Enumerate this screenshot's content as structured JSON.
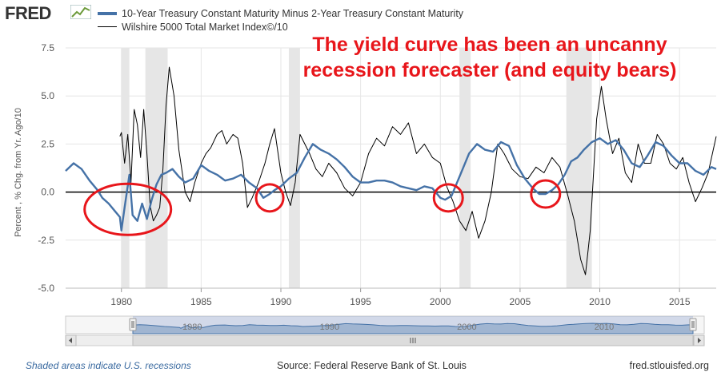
{
  "header": {
    "logo_text": "FRED",
    "logo_icon": "line-chart-icon"
  },
  "annotation": {
    "line1": "The yield curve has been an uncanny",
    "line2": "recession forecaster (and equity bears)"
  },
  "footer": {
    "note": "Shaded areas indicate U.S. recessions",
    "source": "Source: Federal Reserve Bank of St. Louis",
    "site": "fred.stlouisfed.org"
  },
  "navigator": {
    "tick_labels": [
      "1980",
      "1990",
      "2000",
      "2010"
    ],
    "scroll_icon": "scroll-grip-icon",
    "left_arrow_icon": "arrow-left-icon",
    "right_arrow_icon": "arrow-right-icon"
  },
  "colors": {
    "series1": "#4572a7",
    "series2": "#000000",
    "annotation": "#e8161b",
    "recession": "#e6e6e6"
  },
  "chart_data": {
    "type": "line",
    "ylabel": "Percent , % Chg. from Yr. Ago/10",
    "xlim": [
      1976.5,
      2017.3
    ],
    "ylim": [
      -5.0,
      7.5
    ],
    "x_ticks": [
      1980,
      1985,
      1990,
      1995,
      2000,
      2005,
      2010,
      2015
    ],
    "y_ticks": [
      -5.0,
      -2.5,
      0.0,
      2.5,
      5.0,
      7.5
    ],
    "y_tick_labels": [
      "-5.0",
      "-2.5",
      "0.0",
      "2.5",
      "5.0",
      "7.5"
    ],
    "grid": true,
    "legend_position": "top-left",
    "recessions": [
      [
        1980.0,
        1980.5
      ],
      [
        1981.5,
        1982.9
      ],
      [
        1990.5,
        1991.2
      ],
      [
        2001.2,
        2001.9
      ],
      [
        2007.9,
        2009.5
      ]
    ],
    "zero_line": 0,
    "series": [
      {
        "name": "10-Year Treasury Constant Maturity Minus 2-Year Treasury Constant Maturity",
        "x": [
          1976.5,
          1977.0,
          1977.5,
          1978.0,
          1978.5,
          1978.8,
          1979.2,
          1979.6,
          1979.9,
          1980.0,
          1980.2,
          1980.5,
          1980.7,
          1981.0,
          1981.3,
          1981.6,
          1981.9,
          1982.2,
          1982.5,
          1982.8,
          1983.2,
          1983.6,
          1984.0,
          1984.5,
          1985.0,
          1985.5,
          1986.0,
          1986.5,
          1987.0,
          1987.5,
          1988.0,
          1988.5,
          1988.9,
          1989.3,
          1989.6,
          1990.0,
          1990.5,
          1991.0,
          1991.5,
          1992.0,
          1992.5,
          1993.0,
          1993.5,
          1994.0,
          1994.5,
          1995.0,
          1995.5,
          1996.0,
          1996.5,
          1997.0,
          1997.5,
          1998.0,
          1998.5,
          1999.0,
          1999.5,
          2000.0,
          2000.3,
          2000.7,
          2001.0,
          2001.4,
          2001.8,
          2002.3,
          2002.8,
          2003.3,
          2003.8,
          2004.3,
          2004.8,
          2005.3,
          2005.8,
          2006.2,
          2006.6,
          2007.0,
          2007.4,
          2007.8,
          2008.2,
          2008.6,
          2009.0,
          2009.5,
          2010.0,
          2010.5,
          2011.0,
          2011.5,
          2012.0,
          2012.5,
          2013.0,
          2013.5,
          2014.0,
          2014.5,
          2015.0,
          2015.5,
          2016.0,
          2016.5,
          2017.0,
          2017.3
        ],
        "y": [
          1.1,
          1.5,
          1.2,
          0.6,
          0.1,
          -0.3,
          -0.6,
          -1.0,
          -1.3,
          -2.0,
          -0.8,
          0.9,
          -1.2,
          -1.5,
          -0.6,
          -1.4,
          -0.4,
          0.4,
          0.9,
          1.0,
          1.2,
          0.8,
          0.5,
          0.7,
          1.4,
          1.1,
          0.9,
          0.6,
          0.7,
          0.9,
          0.5,
          0.2,
          -0.3,
          -0.1,
          0.1,
          0.3,
          0.7,
          1.0,
          1.8,
          2.5,
          2.2,
          2.0,
          1.7,
          1.3,
          0.8,
          0.5,
          0.5,
          0.6,
          0.6,
          0.5,
          0.3,
          0.2,
          0.1,
          0.3,
          0.2,
          -0.3,
          -0.4,
          -0.2,
          0.4,
          1.2,
          2.0,
          2.5,
          2.2,
          2.1,
          2.6,
          2.4,
          1.4,
          0.7,
          0.2,
          -0.1,
          -0.1,
          0.1,
          0.4,
          0.9,
          1.6,
          1.8,
          2.2,
          2.6,
          2.8,
          2.5,
          2.7,
          2.2,
          1.5,
          1.3,
          1.9,
          2.6,
          2.4,
          1.9,
          1.5,
          1.5,
          1.1,
          0.9,
          1.3,
          1.2
        ]
      },
      {
        "name": "Wilshire 5000 Total Market Index©/10",
        "x": [
          1979.9,
          1980.0,
          1980.2,
          1980.4,
          1980.6,
          1980.8,
          1981.0,
          1981.2,
          1981.4,
          1981.6,
          1981.8,
          1982.0,
          1982.2,
          1982.4,
          1982.6,
          1982.8,
          1983.0,
          1983.3,
          1983.6,
          1984.0,
          1984.3,
          1984.6,
          1985.0,
          1985.3,
          1985.6,
          1986.0,
          1986.3,
          1986.6,
          1987.0,
          1987.3,
          1987.6,
          1987.9,
          1988.2,
          1988.6,
          1989.0,
          1989.3,
          1989.6,
          1990.0,
          1990.3,
          1990.6,
          1990.9,
          1991.2,
          1991.5,
          1991.8,
          1992.2,
          1992.6,
          1993.0,
          1993.5,
          1994.0,
          1994.5,
          1995.0,
          1995.5,
          1996.0,
          1996.5,
          1997.0,
          1997.5,
          1998.0,
          1998.5,
          1999.0,
          1999.5,
          2000.0,
          2000.4,
          2000.8,
          2001.2,
          2001.6,
          2002.0,
          2002.4,
          2002.8,
          2003.2,
          2003.6,
          2004.0,
          2004.5,
          2005.0,
          2005.5,
          2006.0,
          2006.5,
          2007.0,
          2007.5,
          2008.0,
          2008.4,
          2008.8,
          2009.1,
          2009.4,
          2009.8,
          2010.1,
          2010.4,
          2010.8,
          2011.2,
          2011.6,
          2012.0,
          2012.4,
          2012.8,
          2013.2,
          2013.6,
          2014.0,
          2014.4,
          2014.8,
          2015.2,
          2015.6,
          2016.0,
          2016.4,
          2016.8,
          2017.3
        ],
        "y": [
          2.9,
          3.1,
          1.5,
          3.0,
          0.5,
          4.3,
          3.5,
          1.8,
          4.3,
          2.0,
          -0.7,
          -1.5,
          -1.2,
          -0.8,
          1.2,
          4.5,
          6.5,
          5.0,
          2.2,
          0.0,
          -0.5,
          0.5,
          1.5,
          2.0,
          2.3,
          3.0,
          3.2,
          2.5,
          3.0,
          2.8,
          1.5,
          -0.8,
          -0.3,
          0.5,
          1.5,
          2.5,
          3.3,
          1.0,
          0.0,
          -0.7,
          0.5,
          3.0,
          2.5,
          2.0,
          1.2,
          0.8,
          1.5,
          1.0,
          0.2,
          -0.2,
          0.5,
          2.0,
          2.8,
          2.4,
          3.4,
          3.0,
          3.6,
          2.0,
          2.5,
          1.8,
          1.5,
          0.3,
          -0.5,
          -1.5,
          -2.0,
          -1.0,
          -2.4,
          -1.5,
          0.0,
          2.5,
          2.0,
          1.2,
          0.8,
          0.7,
          1.3,
          1.0,
          1.8,
          1.3,
          -0.2,
          -1.5,
          -3.5,
          -4.3,
          -2.0,
          3.8,
          5.5,
          3.8,
          2.0,
          2.8,
          1.0,
          0.5,
          2.5,
          1.5,
          1.5,
          3.0,
          2.5,
          1.5,
          1.2,
          1.8,
          0.5,
          -0.5,
          0.2,
          1.0,
          2.9
        ]
      }
    ]
  }
}
